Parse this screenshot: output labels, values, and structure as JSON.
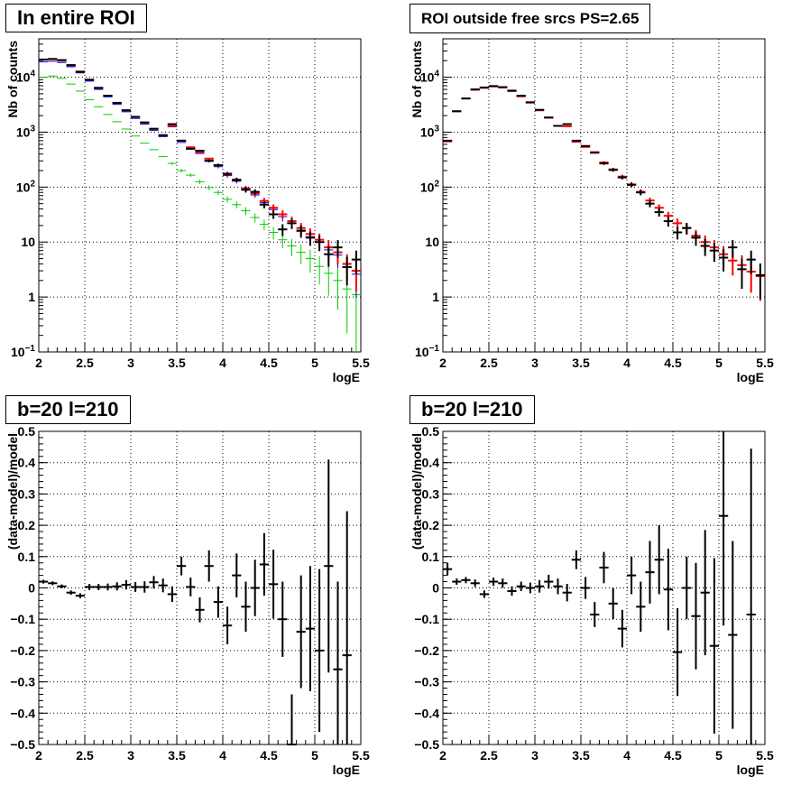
{
  "chart_data": [
    {
      "type": "scatter",
      "title": "In entire ROI",
      "xlabel": "logE",
      "ylabel": "Nb of counts",
      "xlim": [
        2,
        5.5
      ],
      "ylim": [
        0.1,
        50000
      ],
      "yscale": "log",
      "grid": true,
      "xticks": [
        "2",
        "2.5",
        "3",
        "3.5",
        "4",
        "4.5",
        "5",
        "5.5"
      ],
      "yticks": [
        "10^-1",
        "1",
        "10",
        "10^2",
        "10^3",
        "10^4"
      ],
      "colors": {
        "data": "#000000",
        "total_model": "#ff0000",
        "model_blue": "#0000ff",
        "model_green": "#00cc00"
      },
      "series": [
        {
          "x": [
            2.05,
            2.15,
            2.25,
            2.35,
            2.45,
            2.55,
            2.65,
            2.75,
            2.85,
            2.95,
            3.05,
            3.15,
            3.25,
            3.35,
            3.45,
            3.55,
            3.65,
            3.75,
            3.85,
            3.95,
            4.05,
            4.15,
            4.25,
            4.35,
            4.45,
            4.55,
            4.65,
            4.75,
            4.85,
            4.95,
            5.05,
            5.15,
            5.25,
            5.35,
            5.45
          ],
          "y": [
            21000,
            21500,
            20500,
            16500,
            12500,
            9000,
            6400,
            4600,
            3400,
            2500,
            1900,
            1500,
            1150,
            880,
            1400,
            700,
            500,
            460,
            300,
            250,
            175,
            135,
            90,
            82,
            48,
            32,
            17,
            22,
            16,
            12,
            10,
            6,
            8,
            3.5,
            4.8
          ]
        },
        {
          "x": [
            2.05,
            2.15,
            2.25,
            2.35,
            2.45,
            2.55,
            2.65,
            2.75,
            2.85,
            2.95,
            3.05,
            3.15,
            3.25,
            3.35,
            3.45,
            3.55,
            3.65,
            3.75,
            3.85,
            3.95,
            4.05,
            4.15,
            4.25,
            4.35,
            4.45,
            4.55,
            4.65,
            4.75,
            4.85,
            4.95,
            5.05,
            5.15,
            5.25,
            5.35,
            5.45
          ],
          "y": [
            20800,
            21300,
            20000,
            16700,
            12700,
            9000,
            6400,
            4620,
            3420,
            2500,
            1900,
            1500,
            1150,
            880,
            1300,
            700,
            530,
            435,
            330,
            250,
            170,
            137,
            95,
            77,
            56,
            42,
            32,
            24,
            18,
            14,
            11,
            8,
            6.5,
            4,
            3
          ]
        },
        {
          "x": [
            2.05,
            2.15,
            2.25,
            2.35,
            2.45,
            2.55,
            2.65,
            2.75,
            2.85,
            2.95,
            3.05,
            3.15,
            3.25,
            3.35,
            3.45,
            3.55,
            3.65,
            3.75,
            3.85,
            3.95,
            4.05,
            4.15,
            4.25,
            4.35,
            4.45,
            4.55,
            4.65,
            4.75,
            4.85,
            4.95,
            5.05,
            5.15,
            5.25,
            5.35,
            5.45
          ],
          "y": [
            19000,
            19500,
            18500,
            15500,
            12000,
            8500,
            6000,
            4400,
            3200,
            2350,
            1780,
            1400,
            1080,
            830,
            1250,
            650,
            490,
            410,
            310,
            235,
            162,
            128,
            88,
            72,
            52,
            39,
            29,
            22,
            16.5,
            12.5,
            10,
            7.2,
            5.8,
            3.5,
            2.6
          ]
        },
        {
          "x": [
            2.05,
            2.15,
            2.25,
            2.35,
            2.45,
            2.55,
            2.65,
            2.75,
            2.85,
            2.95,
            3.05,
            3.15,
            3.25,
            3.35,
            3.45,
            3.55,
            3.65,
            3.75,
            3.85,
            3.95,
            4.05,
            4.15,
            4.25,
            4.35,
            4.45,
            4.55,
            4.65,
            4.75,
            4.85,
            4.95,
            5.05,
            5.15,
            5.25,
            5.35,
            5.45
          ],
          "y": [
            10000,
            10500,
            9500,
            7500,
            5600,
            3900,
            2900,
            2100,
            1550,
            1140,
            850,
            630,
            480,
            360,
            270,
            200,
            165,
            125,
            98,
            80,
            60,
            48,
            37,
            28,
            21,
            15,
            11,
            8.5,
            6.5,
            5,
            3.6,
            2.7,
            2,
            1.4,
            1.1
          ]
        }
      ]
    },
    {
      "type": "scatter",
      "title": "ROI outside free srcs PS=2.65",
      "xlabel": "logE",
      "ylabel": "Nb of counts",
      "xlim": [
        2,
        5.5
      ],
      "ylim": [
        0.1,
        50000
      ],
      "yscale": "log",
      "grid": true,
      "xticks": [
        "2",
        "2.5",
        "3",
        "3.5",
        "4",
        "4.5",
        "5",
        "5.5"
      ],
      "yticks": [
        "10^-1",
        "1",
        "10",
        "10^2",
        "10^3",
        "10^4"
      ],
      "colors": {
        "data": "#000000",
        "model": "#ff0000"
      },
      "series": [
        {
          "x": [
            2.05,
            2.15,
            2.25,
            2.35,
            2.45,
            2.55,
            2.65,
            2.75,
            2.85,
            2.95,
            3.05,
            3.15,
            3.25,
            3.35,
            3.45,
            3.55,
            3.65,
            3.75,
            3.85,
            3.95,
            4.05,
            4.15,
            4.25,
            4.35,
            4.45,
            4.55,
            4.65,
            4.75,
            4.85,
            4.95,
            5.05,
            5.15,
            5.25,
            5.35,
            5.45
          ],
          "y": [
            700,
            2400,
            4100,
            6000,
            6500,
            6900,
            6600,
            5700,
            4600,
            3500,
            2550,
            1850,
            1300,
            1400,
            700,
            560,
            430,
            270,
            205,
            150,
            110,
            80,
            50,
            35,
            24,
            15,
            18,
            12,
            8.5,
            7,
            5.2,
            8,
            3.2,
            4.8,
            2.5
          ]
        },
        {
          "x": [
            2.05,
            2.15,
            2.25,
            2.35,
            2.45,
            2.55,
            2.65,
            2.75,
            2.85,
            2.95,
            3.05,
            3.15,
            3.25,
            3.35,
            3.45,
            3.55,
            3.65,
            3.75,
            3.85,
            3.95,
            4.05,
            4.15,
            4.25,
            4.35,
            4.45,
            4.55,
            4.65,
            4.75,
            4.85,
            4.95,
            5.05,
            5.15,
            5.25,
            5.35,
            5.45
          ],
          "y": [
            680,
            2400,
            4100,
            5900,
            6400,
            6800,
            6500,
            5600,
            4500,
            3450,
            2500,
            1830,
            1300,
            1280,
            670,
            540,
            420,
            280,
            210,
            155,
            112,
            82,
            57,
            42,
            30,
            22,
            18,
            13,
            10,
            8,
            6,
            4.6,
            3.8,
            2.9,
            2.4
          ]
        }
      ]
    },
    {
      "type": "scatter",
      "title": "b=20 l=210",
      "xlabel": "logE",
      "ylabel": "(data-model)/model",
      "xlim": [
        2,
        5.5
      ],
      "ylim": [
        -0.5,
        0.5
      ],
      "grid": true,
      "xticks": [
        "2",
        "2.5",
        "3",
        "3.5",
        "4",
        "4.5",
        "5",
        "5.5"
      ],
      "yticks": [
        "−0.5",
        "−0.4",
        "−0.3",
        "−0.2",
        "−0.1",
        "0",
        "0.1",
        "0.2",
        "0.3",
        "0.4",
        "0.5"
      ],
      "colors": {
        "data": "#000000"
      },
      "series": [
        {
          "x": [
            2.05,
            2.15,
            2.25,
            2.35,
            2.45,
            2.55,
            2.65,
            2.75,
            2.85,
            2.95,
            3.05,
            3.15,
            3.25,
            3.35,
            3.45,
            3.55,
            3.65,
            3.75,
            3.85,
            3.95,
            4.05,
            4.15,
            4.25,
            4.35,
            4.45,
            4.55,
            4.65,
            4.75,
            4.85,
            4.95,
            5.05,
            5.15,
            5.25,
            5.35,
            5.45
          ],
          "y": [
            0.02,
            0.015,
            0.005,
            -0.015,
            -0.025,
            0.003,
            0.003,
            0.003,
            0.005,
            0.01,
            0.003,
            0.003,
            0.018,
            0.008,
            -0.02,
            0.07,
            0.003,
            -0.07,
            0.07,
            -0.045,
            -0.12,
            0.04,
            -0.06,
            0.0,
            0.075,
            0.012,
            -0.1,
            -0.5,
            -0.14,
            -0.13,
            -0.2,
            0.07,
            -0.26,
            -0.215,
            0.0
          ],
          "err": [
            0.006,
            0.006,
            0.006,
            0.007,
            0.008,
            0.01,
            0.01,
            0.011,
            0.013,
            0.015,
            0.016,
            0.018,
            0.02,
            0.022,
            0.025,
            0.03,
            0.03,
            0.04,
            0.05,
            0.05,
            0.06,
            0.07,
            0.08,
            0.09,
            0.1,
            0.11,
            0.12,
            0.16,
            0.18,
            0.2,
            0.26,
            0.34,
            0.28,
            0.46,
            0.0
          ]
        }
      ]
    },
    {
      "type": "scatter",
      "title": "b=20 l=210",
      "xlabel": "logE",
      "ylabel": "(data-model)/model",
      "xlim": [
        2,
        5.5
      ],
      "ylim": [
        -0.5,
        0.5
      ],
      "grid": true,
      "xticks": [
        "2",
        "2.5",
        "3",
        "3.5",
        "4",
        "4.5",
        "5",
        "5.5"
      ],
      "yticks": [
        "−0.5",
        "−0.4",
        "−0.3",
        "−0.2",
        "−0.1",
        "0",
        "0.1",
        "0.2",
        "0.3",
        "0.4",
        "0.5"
      ],
      "colors": {
        "data": "#000000"
      },
      "series": [
        {
          "x": [
            2.05,
            2.15,
            2.25,
            2.35,
            2.45,
            2.55,
            2.65,
            2.75,
            2.85,
            2.95,
            3.05,
            3.15,
            3.25,
            3.35,
            3.45,
            3.55,
            3.65,
            3.75,
            3.85,
            3.95,
            4.05,
            4.15,
            4.25,
            4.35,
            4.45,
            4.55,
            4.65,
            4.75,
            4.85,
            4.95,
            5.05,
            5.15,
            5.25,
            5.35,
            5.45
          ],
          "y": [
            0.06,
            0.02,
            0.025,
            0.015,
            -0.02,
            0.02,
            0.015,
            -0.01,
            0.005,
            0.0,
            0.005,
            0.02,
            0.005,
            -0.015,
            0.09,
            0.0,
            -0.085,
            0.065,
            -0.05,
            -0.13,
            0.04,
            -0.06,
            0.05,
            0.09,
            -0.005,
            -0.205,
            0.0,
            -0.09,
            -0.015,
            -0.185,
            0.23,
            -0.15,
            0.0,
            -0.085,
            0.0
          ],
          "err": [
            0.02,
            0.01,
            0.01,
            0.012,
            0.012,
            0.013,
            0.015,
            0.015,
            0.015,
            0.017,
            0.02,
            0.022,
            0.025,
            0.028,
            0.03,
            0.035,
            0.04,
            0.05,
            0.05,
            0.06,
            0.06,
            0.08,
            0.1,
            0.11,
            0.13,
            0.14,
            0.1,
            0.17,
            0.2,
            0.28,
            0.35,
            0.3,
            0.0,
            0.53,
            0.0
          ]
        }
      ]
    }
  ]
}
